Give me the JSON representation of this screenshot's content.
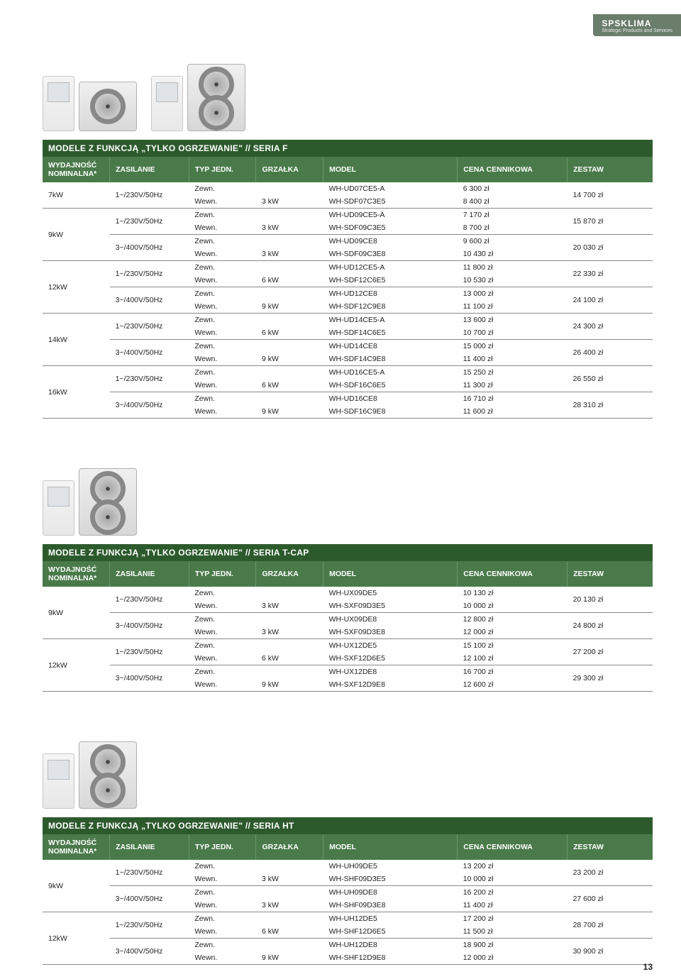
{
  "brand": {
    "name": "SPSKLIMA",
    "tagline": "Strategic Products and Services"
  },
  "page_number": "13",
  "headers": {
    "wydajnosc": "WYDAJNOŚĆ NOMINALNA*",
    "zasilanie": "ZASILANIE",
    "typ": "TYP JEDN.",
    "grzalka": "GRZAŁKA",
    "model": "MODEL",
    "cena": "CENA CENNIKOWA",
    "zestaw": "ZESTAW"
  },
  "tables": [
    {
      "title": "MODELE Z FUNKCJĄ „TYLKO OGRZEWANIE\" // SERIA F",
      "outdoor_variant": "double",
      "groups": [
        {
          "capacity": "7kW",
          "blocks": [
            {
              "supply": "1~/230V/50Hz",
              "zestaw": "14 700 zł",
              "rows": [
                {
                  "typ": "Zewn.",
                  "grz": "",
                  "model": "WH-UD07CE5-A",
                  "cena": "6 300 zł"
                },
                {
                  "typ": "Wewn.",
                  "grz": "3 kW",
                  "model": "WH-SDF07C3E5",
                  "cena": "8 400 zł"
                }
              ]
            }
          ]
        },
        {
          "capacity": "9kW",
          "blocks": [
            {
              "supply": "1~/230V/50Hz",
              "zestaw": "15 870 zł",
              "rows": [
                {
                  "typ": "Zewn.",
                  "grz": "",
                  "model": "WH-UD09CE5-A",
                  "cena": "7 170 zł"
                },
                {
                  "typ": "Wewn.",
                  "grz": "3 kW",
                  "model": "WH-SDF09C3E5",
                  "cena": "8 700 zł"
                }
              ]
            },
            {
              "supply": "3~/400V/50Hz",
              "zestaw": "20 030 zł",
              "rows": [
                {
                  "typ": "Zewn.",
                  "grz": "",
                  "model": "WH-UD09CE8",
                  "cena": "9 600 zł"
                },
                {
                  "typ": "Wewn.",
                  "grz": "3 kW",
                  "model": "WH-SDF09C3E8",
                  "cena": "10 430 zł"
                }
              ]
            }
          ]
        },
        {
          "capacity": "12kW",
          "blocks": [
            {
              "supply": "1~/230V/50Hz",
              "zestaw": "22 330 zł",
              "rows": [
                {
                  "typ": "Zewn.",
                  "grz": "",
                  "model": "WH-UD12CE5-A",
                  "cena": "11 800 zł"
                },
                {
                  "typ": "Wewn.",
                  "grz": "6 kW",
                  "model": "WH-SDF12C6E5",
                  "cena": "10 530 zł"
                }
              ]
            },
            {
              "supply": "3~/400V/50Hz",
              "zestaw": "24 100 zł",
              "rows": [
                {
                  "typ": "Zewn.",
                  "grz": "",
                  "model": "WH-UD12CE8",
                  "cena": "13 000 zł"
                },
                {
                  "typ": "Wewn.",
                  "grz": "9 kW",
                  "model": "WH-SDF12C9E8",
                  "cena": "11 100 zł"
                }
              ]
            }
          ]
        },
        {
          "capacity": "14kW",
          "blocks": [
            {
              "supply": "1~/230V/50Hz",
              "zestaw": "24 300 zł",
              "rows": [
                {
                  "typ": "Zewn.",
                  "grz": "",
                  "model": "WH-UD14CE5-A",
                  "cena": "13 600 zł"
                },
                {
                  "typ": "Wewn.",
                  "grz": "6 kW",
                  "model": "WH-SDF14C6E5",
                  "cena": "10 700 zł"
                }
              ]
            },
            {
              "supply": "3~/400V/50Hz",
              "zestaw": "26 400 zł",
              "rows": [
                {
                  "typ": "Zewn.",
                  "grz": "",
                  "model": "WH-UD14CE8",
                  "cena": "15 000 zł"
                },
                {
                  "typ": "Wewn.",
                  "grz": "9 kW",
                  "model": "WH-SDF14C9E8",
                  "cena": "11 400 zł"
                }
              ]
            }
          ]
        },
        {
          "capacity": "16kW",
          "blocks": [
            {
              "supply": "1~/230V/50Hz",
              "zestaw": "26 550 zł",
              "rows": [
                {
                  "typ": "Zewn.",
                  "grz": "",
                  "model": "WH-UD16CE5-A",
                  "cena": "15 250 zł"
                },
                {
                  "typ": "Wewn.",
                  "grz": "6 kW",
                  "model": "WH-SDF16C6E5",
                  "cena": "11 300 zł"
                }
              ]
            },
            {
              "supply": "3~/400V/50Hz",
              "zestaw": "28 310 zł",
              "rows": [
                {
                  "typ": "Zewn.",
                  "grz": "",
                  "model": "WH-UD16CE8",
                  "cena": "16 710 zł"
                },
                {
                  "typ": "Wewn.",
                  "grz": "9 kW",
                  "model": "WH-SDF16C9E8",
                  "cena": "11 600 zł"
                }
              ]
            }
          ]
        }
      ]
    },
    {
      "title": "MODELE Z FUNKCJĄ „TYLKO OGRZEWANIE\" // SERIA T-CAP",
      "outdoor_variant": "tall",
      "groups": [
        {
          "capacity": "9kW",
          "blocks": [
            {
              "supply": "1~/230V/50Hz",
              "zestaw": "20 130 zł",
              "rows": [
                {
                  "typ": "Zewn.",
                  "grz": "",
                  "model": "WH-UX09DE5",
                  "cena": "10 130 zł"
                },
                {
                  "typ": "Wewn.",
                  "grz": "3 kW",
                  "model": "WH-SXF09D3E5",
                  "cena": "10 000 zł"
                }
              ]
            },
            {
              "supply": "3~/400V/50Hz",
              "zestaw": "24 800 zł",
              "rows": [
                {
                  "typ": "Zewn.",
                  "grz": "",
                  "model": "WH-UX09DE8",
                  "cena": "12 800 zł"
                },
                {
                  "typ": "Wewn.",
                  "grz": "3 kW",
                  "model": "WH-SXF09D3E8",
                  "cena": "12 000 zł"
                }
              ]
            }
          ]
        },
        {
          "capacity": "12kW",
          "blocks": [
            {
              "supply": "1~/230V/50Hz",
              "zestaw": "27 200 zł",
              "rows": [
                {
                  "typ": "Zewn.",
                  "grz": "",
                  "model": "WH-UX12DE5",
                  "cena": "15 100 zł"
                },
                {
                  "typ": "Wewn.",
                  "grz": "6 kW",
                  "model": "WH-SXF12D6E5",
                  "cena": "12 100 zł"
                }
              ]
            },
            {
              "supply": "3~/400V/50Hz",
              "zestaw": "29 300 zł",
              "rows": [
                {
                  "typ": "Zewn.",
                  "grz": "",
                  "model": "WH-UX12DE8",
                  "cena": "16 700 zł"
                },
                {
                  "typ": "Wewn.",
                  "grz": "9 kW",
                  "model": "WH-SXF12D9E8",
                  "cena": "12 600 zł"
                }
              ]
            }
          ]
        }
      ]
    },
    {
      "title": "MODELE Z FUNKCJĄ „TYLKO OGRZEWANIE\" // SERIA HT",
      "outdoor_variant": "tall",
      "groups": [
        {
          "capacity": "9kW",
          "blocks": [
            {
              "supply": "1~/230V/50Hz",
              "zestaw": "23 200 zł",
              "rows": [
                {
                  "typ": "Zewn.",
                  "grz": "",
                  "model": "WH-UH09DE5",
                  "cena": "13 200 zł"
                },
                {
                  "typ": "Wewn.",
                  "grz": "3 kW",
                  "model": "WH-SHF09D3E5",
                  "cena": "10 000 zł"
                }
              ]
            },
            {
              "supply": "3~/400V/50Hz",
              "zestaw": "27 600 zł",
              "rows": [
                {
                  "typ": "Zewn.",
                  "grz": "",
                  "model": "WH-UH09DE8",
                  "cena": "16 200 zł"
                },
                {
                  "typ": "Wewn.",
                  "grz": "3 kW",
                  "model": "WH-SHF09D3E8",
                  "cena": "11 400 zł"
                }
              ]
            }
          ]
        },
        {
          "capacity": "12kW",
          "blocks": [
            {
              "supply": "1~/230V/50Hz",
              "zestaw": "28 700 zł",
              "rows": [
                {
                  "typ": "Zewn.",
                  "grz": "",
                  "model": "WH-UH12DE5",
                  "cena": "17 200 zł"
                },
                {
                  "typ": "Wewn.",
                  "grz": "6 kW",
                  "model": "WH-SHF12D6E5",
                  "cena": "11 500 zł"
                }
              ]
            },
            {
              "supply": "3~/400V/50Hz",
              "zestaw": "30 900 zł",
              "rows": [
                {
                  "typ": "Zewn.",
                  "grz": "",
                  "model": "WH-UH12DE8",
                  "cena": "18 900 zł"
                },
                {
                  "typ": "Wewn.",
                  "grz": "9 kW",
                  "model": "WH-SHF12D9E8",
                  "cena": "12 000 zł"
                }
              ]
            }
          ]
        }
      ]
    }
  ]
}
